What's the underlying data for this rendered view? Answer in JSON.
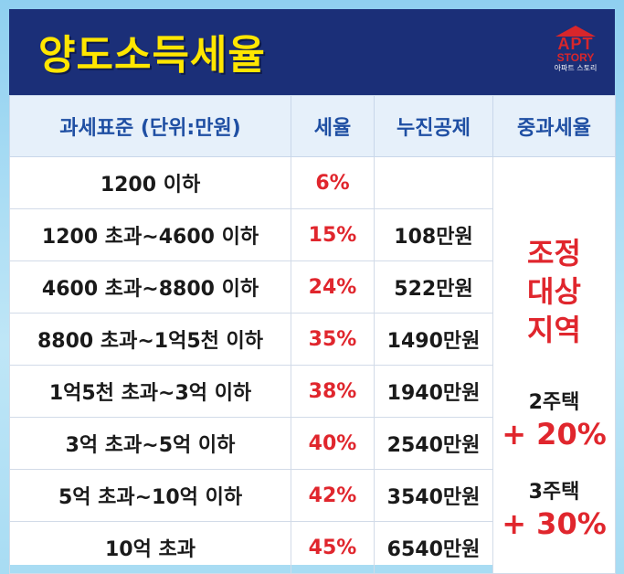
{
  "title": "양도소득세율",
  "logo": {
    "line1": "APT",
    "line2": "STORY",
    "line3": "아파트 스토리"
  },
  "headers": {
    "base": "과세표준 (단위:만원)",
    "rate": "세율",
    "deduction": "누진공제",
    "heavy": "중과세율"
  },
  "rows": [
    {
      "base": "1200 이하",
      "rate": "6%",
      "deduction": ""
    },
    {
      "base": "1200 초과~4600 이하",
      "rate": "15%",
      "deduction": "108만원"
    },
    {
      "base": "4600 초과~8800 이하",
      "rate": "24%",
      "deduction": "522만원"
    },
    {
      "base": "8800 초과~1억5천 이하",
      "rate": "35%",
      "deduction": "1490만원"
    },
    {
      "base": "1억5천 초과~3억 이하",
      "rate": "38%",
      "deduction": "1940만원"
    },
    {
      "base": "3억 초과~5억 이하",
      "rate": "40%",
      "deduction": "2540만원"
    },
    {
      "base": "5억 초과~10억 이하",
      "rate": "42%",
      "deduction": "3540만원"
    },
    {
      "base": "10억 초과",
      "rate": "45%",
      "deduction": "6540만원"
    }
  ],
  "heavy": {
    "zone": "조정대상지역",
    "two_homes_label": "2주택",
    "two_homes_rate": "+ 20%",
    "three_homes_label": "3주택",
    "three_homes_rate": "+ 30%"
  },
  "colors": {
    "title_bar": "#1b2f78",
    "title_text": "#ffe600",
    "header_text": "#1f4fa3",
    "accent_red": "#e0262d"
  }
}
